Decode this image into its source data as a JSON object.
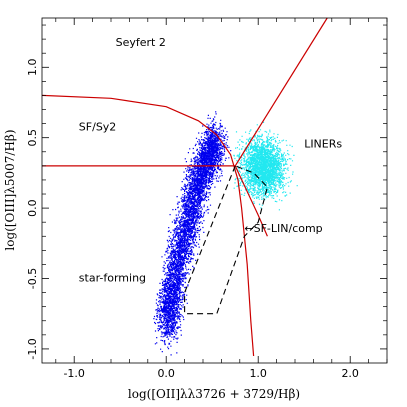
{
  "chart_data": {
    "type": "scatter",
    "title": "",
    "xlabel": "log([OII]λλ3726 + 3729/Hβ)",
    "ylabel": "log([OIII]λ5007/Hβ)",
    "xlim": [
      -1.35,
      2.4
    ],
    "ylim": [
      -1.1,
      1.35
    ],
    "x_ticks": [
      -1.0,
      0.0,
      1.0,
      2.0
    ],
    "x_tick_labels": [
      "-1.0",
      "0.0",
      "1.0",
      "2.0"
    ],
    "y_ticks": [
      -1.0,
      -0.5,
      0.0,
      0.5,
      1.0
    ],
    "y_tick_labels": [
      "-1.0",
      "-0.5",
      "0.0",
      "0.5",
      "1.0"
    ],
    "grid": false,
    "colors": {
      "star_forming": "#0000ee",
      "liners": "#22e8f0",
      "lines": "#cc0000",
      "dashed": "#000000"
    },
    "point_clouds": [
      {
        "color": "#0000ee",
        "spine": [
          [
            0.0,
            -0.85
          ],
          [
            0.05,
            -0.6
          ],
          [
            0.15,
            -0.3
          ],
          [
            0.25,
            -0.05
          ],
          [
            0.35,
            0.2
          ],
          [
            0.45,
            0.38
          ],
          [
            0.55,
            0.48
          ]
        ],
        "spread": [
          0.16,
          0.2
        ]
      },
      {
        "color": "#22e8f0",
        "center": [
          1.05,
          0.3
        ],
        "spread": [
          0.3,
          0.25
        ]
      }
    ],
    "lines": [
      {
        "style": "solid",
        "points": [
          [
            -1.35,
            0.8
          ],
          [
            -0.6,
            0.78
          ],
          [
            0.0,
            0.72
          ],
          [
            0.35,
            0.62
          ],
          [
            0.55,
            0.52
          ],
          [
            0.7,
            0.38
          ],
          [
            0.78,
            0.2
          ],
          [
            0.82,
            0.0
          ],
          [
            0.85,
            -0.2
          ],
          [
            0.88,
            -0.4
          ],
          [
            0.9,
            -0.6
          ],
          [
            0.92,
            -0.8
          ],
          [
            0.95,
            -1.05
          ]
        ]
      },
      {
        "style": "solid",
        "points": [
          [
            -1.35,
            0.3
          ],
          [
            0.75,
            0.3
          ]
        ]
      },
      {
        "style": "solid",
        "points": [
          [
            0.75,
            0.3
          ],
          [
            1.75,
            1.35
          ]
        ]
      },
      {
        "style": "solid",
        "points": [
          [
            0.75,
            0.3
          ],
          [
            1.0,
            -0.05
          ],
          [
            1.1,
            -0.2
          ]
        ]
      },
      {
        "style": "dashed",
        "points": [
          [
            0.75,
            0.3
          ],
          [
            0.2,
            -0.6
          ],
          [
            0.2,
            -0.75
          ],
          [
            0.55,
            -0.75
          ],
          [
            0.85,
            -0.2
          ],
          [
            1.0,
            -0.1
          ],
          [
            1.1,
            0.15
          ],
          [
            0.95,
            0.25
          ],
          [
            0.75,
            0.3
          ]
        ]
      }
    ],
    "annotations": [
      {
        "text": "Seyfert 2",
        "x": -0.55,
        "y": 1.15
      },
      {
        "text": "SF/Sy2",
        "x": -0.95,
        "y": 0.55
      },
      {
        "text": "LINERs",
        "x": 1.5,
        "y": 0.43
      },
      {
        "text": "star-forming",
        "x": -0.95,
        "y": -0.52
      },
      {
        "text": "←SF-LIN/comp",
        "x": 0.85,
        "y": -0.17
      }
    ]
  }
}
